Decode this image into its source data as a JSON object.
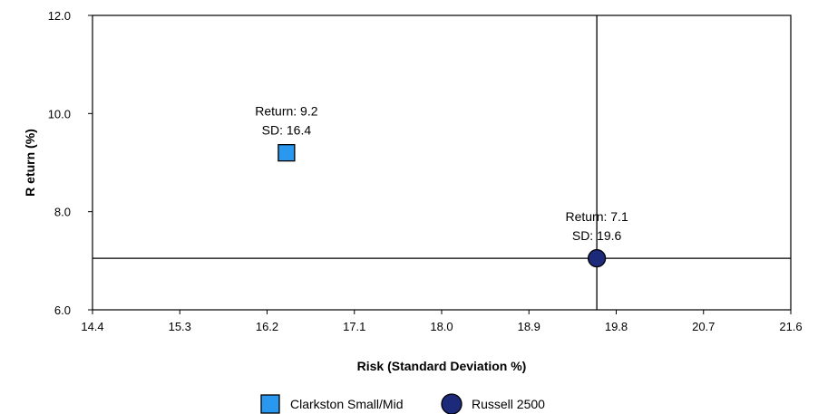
{
  "chart_data": {
    "type": "scatter",
    "title": "",
    "xlabel": "Risk (Standard Deviation %)",
    "ylabel": "R eturn (%)",
    "xlim": [
      14.4,
      21.6
    ],
    "ylim": [
      6.0,
      12.0
    ],
    "x_ticks": [
      "14.4",
      "15.3",
      "16.2",
      "17.1",
      "18.0",
      "18.9",
      "19.8",
      "20.7",
      "21.6"
    ],
    "y_ticks": [
      "6.0",
      "8.0",
      "10.0",
      "12.0"
    ],
    "grid": false,
    "legend_position": "bottom",
    "reference_lines": {
      "x": 19.6,
      "y": 7.05
    },
    "series": [
      {
        "name": "Clarkston Small/Mid",
        "marker": "square",
        "color": "#2b98f0",
        "x": 16.4,
        "y": 9.2,
        "label_line1": "Return: 9.2",
        "label_line2": "SD: 16.4"
      },
      {
        "name": "Russell 2500",
        "marker": "circle",
        "color": "#1d2a7a",
        "x": 19.6,
        "y": 7.05,
        "label_line1": "Return: 7.1",
        "label_line2": "SD: 19.6"
      }
    ]
  }
}
